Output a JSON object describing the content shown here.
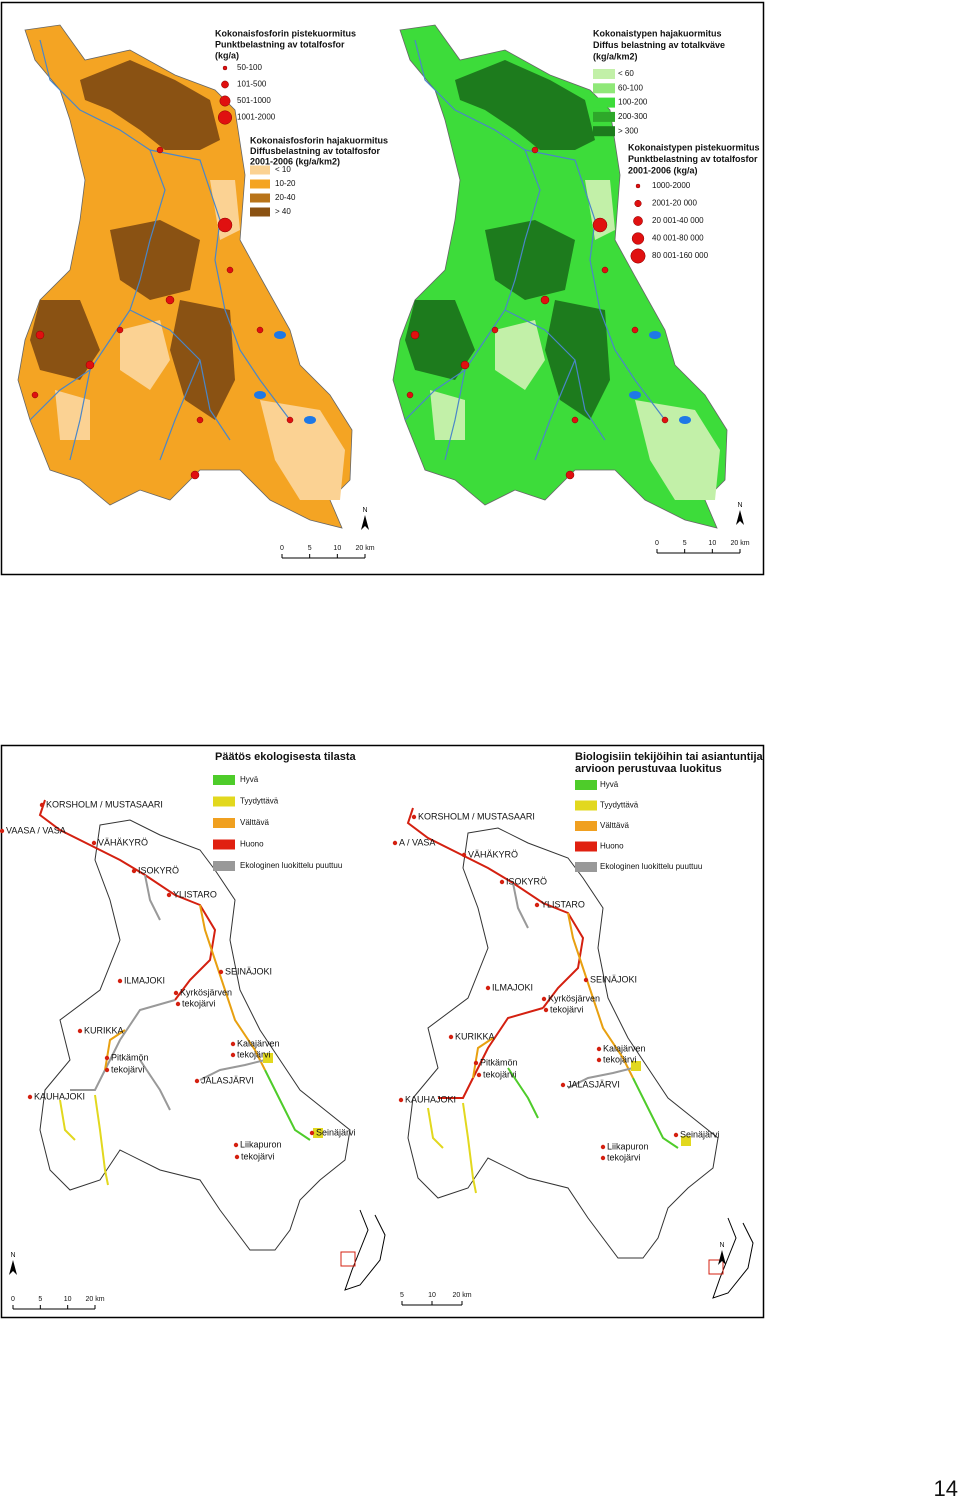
{
  "top_panel": {
    "left_map": {
      "point_legend": {
        "title": [
          "Kokonaisfosforin pistekuormitus",
          "Punktbelastning av totalfosfor",
          "(kg/a)"
        ],
        "items": [
          "50-100",
          "101-500",
          "501-1000",
          "1001-2000"
        ]
      },
      "diffuse_legend": {
        "title": [
          "Kokonaisfosforin hajakuormitus",
          "Diffusbelastning av totalfosfor",
          "2001-2006 (kg/a/km2)"
        ],
        "items": [
          "< 10",
          "10-20",
          "20-40",
          "> 40"
        ]
      },
      "north": "N",
      "scale": [
        "0",
        "5",
        "10",
        "20 km"
      ]
    },
    "right_map": {
      "diffuse_legend": {
        "title": [
          "Kokonaistypen hajakuormitus",
          "Diffus belastning av totalkväve",
          "(kg/a/km2)"
        ],
        "items": [
          "< 60",
          "60-100",
          "100-200",
          "200-300",
          "> 300"
        ]
      },
      "point_legend": {
        "title": [
          "Kokonaistypen pistekuormitus",
          "Punktbelastning av totalfosfor",
          "2001-2006 (kg/a)"
        ],
        "items": [
          "1000-2000",
          "2001-20 000",
          "20 001-40 000",
          "40 001-80 000",
          "80 001-160 000"
        ]
      },
      "north": "N",
      "scale": [
        "0",
        "5",
        "10",
        "20 km"
      ]
    }
  },
  "bottom_panel": {
    "left_map": {
      "legend": {
        "title": [
          "Päätös ekologisesta tilasta"
        ],
        "items": [
          "Hyvä",
          "Tyydyttävä",
          "Välttävä",
          "Huono",
          "Ekologinen luokittelu puuttuu"
        ]
      },
      "places": [
        "KORSHOLM / MUSTASAARI",
        "VAASA / VASA",
        "VÄHÄKYRÖ",
        "ISOKYRÖ",
        "YLISTARO",
        "ILMAJOKI",
        "SEINÄJOKI",
        "Kyrkösjärven",
        "tekojärvi",
        "KURIKKA",
        "Pitkämön",
        "tekojärvi",
        "Kalajärven",
        "tekojärvi",
        "JALASJÄRVI",
        "KAUHAJOKI",
        "Seinäjärvi",
        "Liikapuron",
        "tekojärvi"
      ],
      "north": "N",
      "scale": [
        "0",
        "5",
        "10",
        "20 km"
      ]
    },
    "right_map": {
      "legend": {
        "title": [
          "Biologisiin tekijöihin tai asiantuntija",
          "arvioon perustuvaa luokitus"
        ],
        "items": [
          "Hyvä",
          "Tyydyttävä",
          "Välttävä",
          "Huono",
          "Ekologinen luokittelu puuttuu"
        ]
      },
      "places": [
        "KORSHOLM / MUSTASAARI",
        "A / VASA",
        "VÄHÄKYRÖ",
        "ISOKYRÖ",
        "YLISTARO",
        "ILMAJOKI",
        "SEINÄJOKI",
        "Kyrkösjärven",
        "tekojärvi",
        "KURIKKA",
        "Pitkämön",
        "tekojärvi",
        "Kalajärven",
        "tekojärvi",
        "JALASJÄRVI",
        "KAUHAJOKI",
        "Seinäjärvi",
        "Liikapuron",
        "tekojärvi"
      ],
      "north": "N",
      "scale": [
        "5",
        "10",
        "20 km"
      ]
    }
  },
  "page_number": "14"
}
